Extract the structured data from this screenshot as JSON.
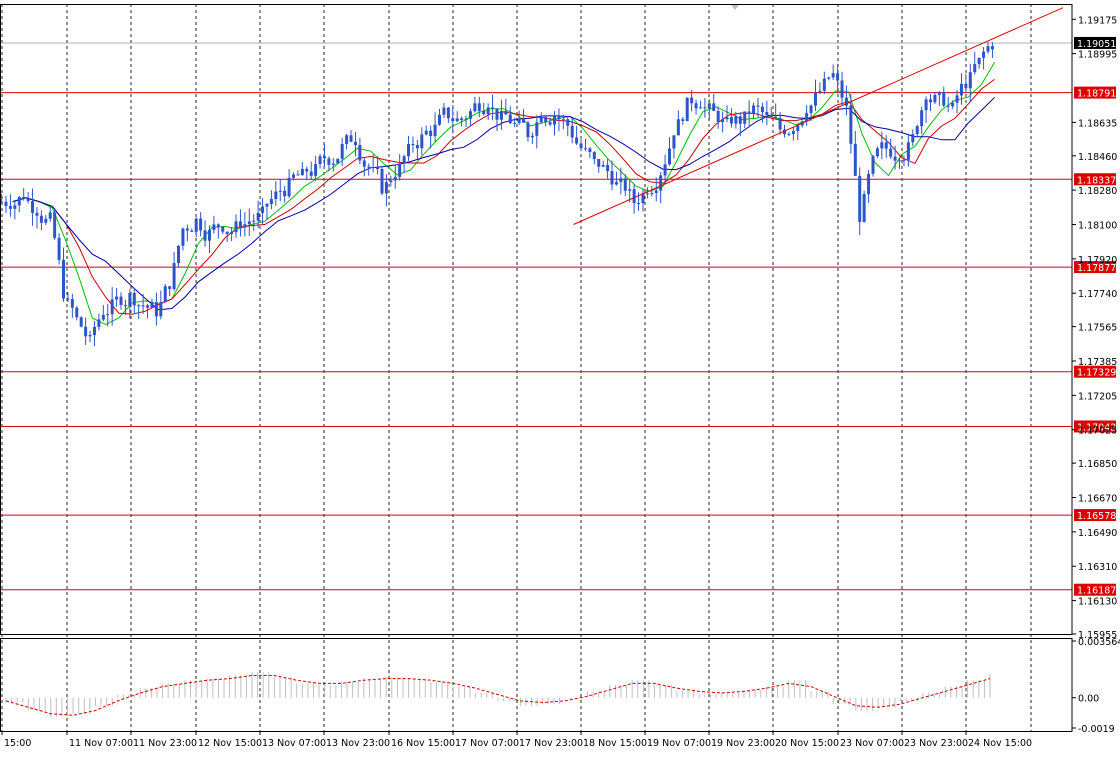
{
  "chart_data": {
    "type": "candlestick",
    "symbol_context": "price chart with indicator subwindow",
    "price_axis": {
      "range": [
        1.15955,
        1.19255
      ],
      "ticks": [
        "1.19175",
        "1.18995",
        "1.18635",
        "1.18460",
        "1.18280",
        "1.18100",
        "1.17920",
        "1.17740",
        "1.17565",
        "1.17385",
        "1.17205",
        "1.17025",
        "1.16850",
        "1.16670",
        "1.16490",
        "1.16310",
        "1.16130",
        "1.15955"
      ]
    },
    "time_axis": {
      "labels": [
        "15:00",
        "11 Nov 07:00",
        "11 Nov 23:00",
        "12 Nov 15:00",
        "13 Nov 07:00",
        "13 Nov 23:00",
        "16 Nov 15:00",
        "17 Nov 07:00",
        "17 Nov 23:00",
        "18 Nov 15:00",
        "19 Nov 07:00",
        "19 Nov 23:00",
        "20 Nov 15:00",
        "23 Nov 07:00",
        "23 Nov 23:00",
        "24 Nov 15:00"
      ]
    },
    "current_price": "1.19051",
    "levels": [
      {
        "price": 1.18791,
        "label": "1.18791"
      },
      {
        "price": 1.18337,
        "label": "1.18337"
      },
      {
        "price": 1.17877,
        "label": "1.17877"
      },
      {
        "price": 1.17329,
        "label": "1.17329"
      },
      {
        "price": 1.17042,
        "label": "1.17042"
      },
      {
        "price": 1.16578,
        "label": "1.16578"
      },
      {
        "price": 1.16187,
        "label": "1.16187"
      }
    ],
    "trendline": {
      "from": {
        "bar": 0.535,
        "price": 1.181
      },
      "to": {
        "bar": 0.958,
        "price": 1.1922
      }
    },
    "closes": [
      1.1822,
      1.1826,
      1.1818,
      1.1812,
      1.1775,
      1.176,
      1.1748,
      1.1765,
      1.177,
      1.1772,
      1.1768,
      1.1765,
      1.178,
      1.1808,
      1.1812,
      1.1805,
      1.181,
      1.1808,
      1.1812,
      1.1815,
      1.1825,
      1.183,
      1.1835,
      1.1838,
      1.1845,
      1.185,
      1.1855,
      1.184,
      1.183,
      1.1838,
      1.1848,
      1.1855,
      1.186,
      1.1868,
      1.1865,
      1.1872,
      1.1875,
      1.1865,
      1.1862,
      1.1858,
      1.187,
      1.1868,
      1.1862,
      1.185,
      1.1842,
      1.1838,
      1.183,
      1.1822,
      1.183,
      1.1838,
      1.186,
      1.1872,
      1.1875,
      1.1868,
      1.1862,
      1.1865,
      1.187,
      1.1865,
      1.186,
      1.1862,
      1.1872,
      1.188,
      1.1888,
      1.187,
      1.1815,
      1.1842,
      1.185,
      1.1848,
      1.1855,
      1.188,
      1.1875,
      1.187,
      1.1885,
      1.1895,
      1.1905
    ],
    "indicator": {
      "ticks": [
        "0.003564",
        "0.00",
        "-0.0019"
      ],
      "range": [
        -0.0019,
        0.003564
      ],
      "histogram": [
        -0.0003,
        -0.0008,
        -0.0012,
        -0.001,
        -0.0005,
        0.0002,
        0.0006,
        0.0009,
        0.0011,
        0.0012,
        0.0014,
        0.0016,
        0.0013,
        0.0009,
        0.0008,
        0.001,
        0.0012,
        0.0013,
        0.0012,
        0.001,
        0.0007,
        0.0003,
        -0.0002,
        -0.0005,
        -0.0004,
        -0.0001,
        0.0004,
        0.0008,
        0.0011,
        0.0008,
        0.0004,
        0.0002,
        0.0003,
        0.0005,
        0.0007,
        0.0011,
        0.0004,
        -0.0004,
        -0.0008,
        -0.0006,
        -0.0002,
        0.0003,
        0.0007,
        0.0011,
        0.0015
      ],
      "signal": [
        -0.0002,
        -0.0006,
        -0.001,
        -0.0011,
        -0.0008,
        -0.0002,
        0.0003,
        0.0007,
        0.0009,
        0.0011,
        0.0012,
        0.0014,
        0.0014,
        0.0011,
        0.0009,
        0.0009,
        0.0011,
        0.0012,
        0.0012,
        0.0011,
        0.0009,
        0.0006,
        0.0002,
        -0.0002,
        -0.0003,
        -0.0002,
        0.0001,
        0.0005,
        0.0009,
        0.0009,
        0.0006,
        0.0004,
        0.0003,
        0.0004,
        0.0006,
        0.0009,
        0.0007,
        0.0001,
        -0.0005,
        -0.0006,
        -0.0004,
        0.0,
        0.0004,
        0.0008,
        0.0012
      ]
    },
    "colors": {
      "candles": "#2d54c9",
      "levels": "#dd0000",
      "trendline": "#dd0000",
      "ma_fast": "#00c000",
      "ma_mid": "#cc0000",
      "ma_slow": "#0000aa",
      "histogram": "#bfbfbf",
      "signal": "#cc0000",
      "current_price_bg": "#000000"
    }
  }
}
